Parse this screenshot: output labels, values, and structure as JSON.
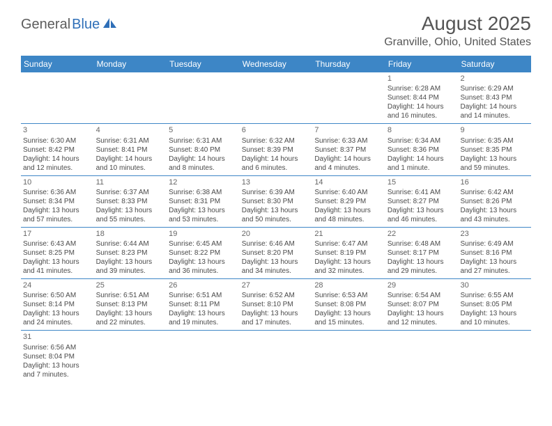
{
  "logo": {
    "text1": "General",
    "text2": "Blue"
  },
  "title": "August 2025",
  "location": "Granville, Ohio, United States",
  "colors": {
    "header_bg": "#3d86c6",
    "header_text": "#ffffff",
    "border": "#3d86c6",
    "text": "#4a4a4a",
    "title_text": "#555555",
    "logo_gray": "#5c5c5c",
    "logo_blue": "#2f6fb8"
  },
  "day_names": [
    "Sunday",
    "Monday",
    "Tuesday",
    "Wednesday",
    "Thursday",
    "Friday",
    "Saturday"
  ],
  "weeks": [
    [
      {
        "empty": true
      },
      {
        "empty": true
      },
      {
        "empty": true
      },
      {
        "empty": true
      },
      {
        "empty": true
      },
      {
        "day": "1",
        "sunrise": "Sunrise: 6:28 AM",
        "sunset": "Sunset: 8:44 PM",
        "daylight1": "Daylight: 14 hours",
        "daylight2": "and 16 minutes."
      },
      {
        "day": "2",
        "sunrise": "Sunrise: 6:29 AM",
        "sunset": "Sunset: 8:43 PM",
        "daylight1": "Daylight: 14 hours",
        "daylight2": "and 14 minutes."
      }
    ],
    [
      {
        "day": "3",
        "sunrise": "Sunrise: 6:30 AM",
        "sunset": "Sunset: 8:42 PM",
        "daylight1": "Daylight: 14 hours",
        "daylight2": "and 12 minutes."
      },
      {
        "day": "4",
        "sunrise": "Sunrise: 6:31 AM",
        "sunset": "Sunset: 8:41 PM",
        "daylight1": "Daylight: 14 hours",
        "daylight2": "and 10 minutes."
      },
      {
        "day": "5",
        "sunrise": "Sunrise: 6:31 AM",
        "sunset": "Sunset: 8:40 PM",
        "daylight1": "Daylight: 14 hours",
        "daylight2": "and 8 minutes."
      },
      {
        "day": "6",
        "sunrise": "Sunrise: 6:32 AM",
        "sunset": "Sunset: 8:39 PM",
        "daylight1": "Daylight: 14 hours",
        "daylight2": "and 6 minutes."
      },
      {
        "day": "7",
        "sunrise": "Sunrise: 6:33 AM",
        "sunset": "Sunset: 8:37 PM",
        "daylight1": "Daylight: 14 hours",
        "daylight2": "and 4 minutes."
      },
      {
        "day": "8",
        "sunrise": "Sunrise: 6:34 AM",
        "sunset": "Sunset: 8:36 PM",
        "daylight1": "Daylight: 14 hours",
        "daylight2": "and 1 minute."
      },
      {
        "day": "9",
        "sunrise": "Sunrise: 6:35 AM",
        "sunset": "Sunset: 8:35 PM",
        "daylight1": "Daylight: 13 hours",
        "daylight2": "and 59 minutes."
      }
    ],
    [
      {
        "day": "10",
        "sunrise": "Sunrise: 6:36 AM",
        "sunset": "Sunset: 8:34 PM",
        "daylight1": "Daylight: 13 hours",
        "daylight2": "and 57 minutes."
      },
      {
        "day": "11",
        "sunrise": "Sunrise: 6:37 AM",
        "sunset": "Sunset: 8:33 PM",
        "daylight1": "Daylight: 13 hours",
        "daylight2": "and 55 minutes."
      },
      {
        "day": "12",
        "sunrise": "Sunrise: 6:38 AM",
        "sunset": "Sunset: 8:31 PM",
        "daylight1": "Daylight: 13 hours",
        "daylight2": "and 53 minutes."
      },
      {
        "day": "13",
        "sunrise": "Sunrise: 6:39 AM",
        "sunset": "Sunset: 8:30 PM",
        "daylight1": "Daylight: 13 hours",
        "daylight2": "and 50 minutes."
      },
      {
        "day": "14",
        "sunrise": "Sunrise: 6:40 AM",
        "sunset": "Sunset: 8:29 PM",
        "daylight1": "Daylight: 13 hours",
        "daylight2": "and 48 minutes."
      },
      {
        "day": "15",
        "sunrise": "Sunrise: 6:41 AM",
        "sunset": "Sunset: 8:27 PM",
        "daylight1": "Daylight: 13 hours",
        "daylight2": "and 46 minutes."
      },
      {
        "day": "16",
        "sunrise": "Sunrise: 6:42 AM",
        "sunset": "Sunset: 8:26 PM",
        "daylight1": "Daylight: 13 hours",
        "daylight2": "and 43 minutes."
      }
    ],
    [
      {
        "day": "17",
        "sunrise": "Sunrise: 6:43 AM",
        "sunset": "Sunset: 8:25 PM",
        "daylight1": "Daylight: 13 hours",
        "daylight2": "and 41 minutes."
      },
      {
        "day": "18",
        "sunrise": "Sunrise: 6:44 AM",
        "sunset": "Sunset: 8:23 PM",
        "daylight1": "Daylight: 13 hours",
        "daylight2": "and 39 minutes."
      },
      {
        "day": "19",
        "sunrise": "Sunrise: 6:45 AM",
        "sunset": "Sunset: 8:22 PM",
        "daylight1": "Daylight: 13 hours",
        "daylight2": "and 36 minutes."
      },
      {
        "day": "20",
        "sunrise": "Sunrise: 6:46 AM",
        "sunset": "Sunset: 8:20 PM",
        "daylight1": "Daylight: 13 hours",
        "daylight2": "and 34 minutes."
      },
      {
        "day": "21",
        "sunrise": "Sunrise: 6:47 AM",
        "sunset": "Sunset: 8:19 PM",
        "daylight1": "Daylight: 13 hours",
        "daylight2": "and 32 minutes."
      },
      {
        "day": "22",
        "sunrise": "Sunrise: 6:48 AM",
        "sunset": "Sunset: 8:17 PM",
        "daylight1": "Daylight: 13 hours",
        "daylight2": "and 29 minutes."
      },
      {
        "day": "23",
        "sunrise": "Sunrise: 6:49 AM",
        "sunset": "Sunset: 8:16 PM",
        "daylight1": "Daylight: 13 hours",
        "daylight2": "and 27 minutes."
      }
    ],
    [
      {
        "day": "24",
        "sunrise": "Sunrise: 6:50 AM",
        "sunset": "Sunset: 8:14 PM",
        "daylight1": "Daylight: 13 hours",
        "daylight2": "and 24 minutes."
      },
      {
        "day": "25",
        "sunrise": "Sunrise: 6:51 AM",
        "sunset": "Sunset: 8:13 PM",
        "daylight1": "Daylight: 13 hours",
        "daylight2": "and 22 minutes."
      },
      {
        "day": "26",
        "sunrise": "Sunrise: 6:51 AM",
        "sunset": "Sunset: 8:11 PM",
        "daylight1": "Daylight: 13 hours",
        "daylight2": "and 19 minutes."
      },
      {
        "day": "27",
        "sunrise": "Sunrise: 6:52 AM",
        "sunset": "Sunset: 8:10 PM",
        "daylight1": "Daylight: 13 hours",
        "daylight2": "and 17 minutes."
      },
      {
        "day": "28",
        "sunrise": "Sunrise: 6:53 AM",
        "sunset": "Sunset: 8:08 PM",
        "daylight1": "Daylight: 13 hours",
        "daylight2": "and 15 minutes."
      },
      {
        "day": "29",
        "sunrise": "Sunrise: 6:54 AM",
        "sunset": "Sunset: 8:07 PM",
        "daylight1": "Daylight: 13 hours",
        "daylight2": "and 12 minutes."
      },
      {
        "day": "30",
        "sunrise": "Sunrise: 6:55 AM",
        "sunset": "Sunset: 8:05 PM",
        "daylight1": "Daylight: 13 hours",
        "daylight2": "and 10 minutes."
      }
    ],
    [
      {
        "day": "31",
        "sunrise": "Sunrise: 6:56 AM",
        "sunset": "Sunset: 8:04 PM",
        "daylight1": "Daylight: 13 hours",
        "daylight2": "and 7 minutes."
      },
      {
        "empty": true
      },
      {
        "empty": true
      },
      {
        "empty": true
      },
      {
        "empty": true
      },
      {
        "empty": true
      },
      {
        "empty": true
      }
    ]
  ]
}
